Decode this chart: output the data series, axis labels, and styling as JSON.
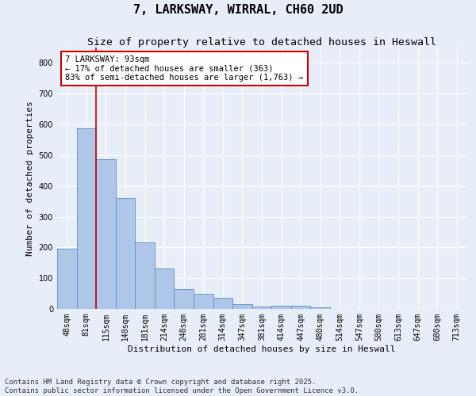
{
  "title": "7, LARKSWAY, WIRRAL, CH60 2UD",
  "subtitle": "Size of property relative to detached houses in Heswall",
  "xlabel": "Distribution of detached houses by size in Heswall",
  "ylabel": "Number of detached properties",
  "footer_line1": "Contains HM Land Registry data © Crown copyright and database right 2025.",
  "footer_line2": "Contains public sector information licensed under the Open Government Licence v3.0.",
  "bar_labels": [
    "48sqm",
    "81sqm",
    "115sqm",
    "148sqm",
    "181sqm",
    "214sqm",
    "248sqm",
    "281sqm",
    "314sqm",
    "347sqm",
    "381sqm",
    "414sqm",
    "447sqm",
    "480sqm",
    "514sqm",
    "547sqm",
    "580sqm",
    "613sqm",
    "647sqm",
    "680sqm",
    "713sqm"
  ],
  "bar_values": [
    197,
    588,
    487,
    360,
    217,
    132,
    65,
    48,
    35,
    15,
    8,
    11,
    10,
    5,
    0,
    0,
    0,
    0,
    0,
    0,
    0
  ],
  "bar_color": "#aec6e8",
  "bar_edge_color": "#5b8fc9",
  "background_color": "#e8eef8",
  "grid_color": "#ffffff",
  "annotation_title": "7 LARKSWAY: 93sqm",
  "annotation_line1": "← 17% of detached houses are smaller (363)",
  "annotation_line2": "83% of semi-detached houses are larger (1,763) →",
  "annotation_box_color": "#ffffff",
  "annotation_box_edge_color": "#cc0000",
  "red_line_color": "#cc0000",
  "red_line_x": 1.5,
  "ylim": [
    0,
    850
  ],
  "yticks": [
    0,
    100,
    200,
    300,
    400,
    500,
    600,
    700,
    800
  ],
  "title_fontsize": 11,
  "subtitle_fontsize": 9.5,
  "axis_label_fontsize": 8,
  "tick_fontsize": 7,
  "annotation_fontsize": 7.5,
  "footer_fontsize": 6.5
}
